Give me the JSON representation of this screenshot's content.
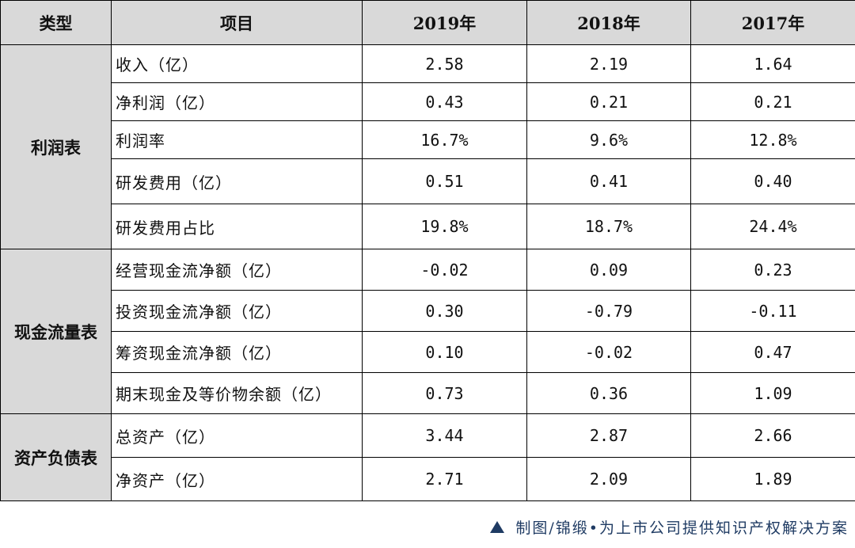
{
  "colors": {
    "header_bg": "#d9d9d9",
    "type_bg": "#d9d9d9",
    "caption": "#1f3b63"
  },
  "table": {
    "headers": [
      "类型",
      "项目",
      "2019年",
      "2018年",
      "2017年"
    ],
    "groups": [
      {
        "type": "利润表",
        "rows": [
          {
            "item": "收入（亿）",
            "values": [
              "2.58",
              "2.19",
              "1.64"
            ]
          },
          {
            "item": "净利润（亿）",
            "values": [
              "0.43",
              "0.21",
              "0.21"
            ]
          },
          {
            "item": "利润率",
            "values": [
              "16.7%",
              "9.6%",
              "12.8%"
            ]
          },
          {
            "item": "研发费用（亿）",
            "values": [
              "0.51",
              "0.41",
              "0.40"
            ]
          },
          {
            "item": "研发费用占比",
            "values": [
              "19.8%",
              "18.7%",
              "24.4%"
            ]
          }
        ]
      },
      {
        "type": "现金流量表",
        "rows": [
          {
            "item": "经营现金流净额（亿）",
            "values": [
              "-0.02",
              "0.09",
              "0.23"
            ]
          },
          {
            "item": "投资现金流净额（亿）",
            "values": [
              "0.30",
              "-0.79",
              "-0.11"
            ]
          },
          {
            "item": "筹资现金流净额（亿）",
            "values": [
              "0.10",
              "-0.02",
              "0.47"
            ]
          },
          {
            "item": "期末现金及等价物余额（亿）",
            "values": [
              "0.73",
              "0.36",
              "1.09"
            ]
          }
        ]
      },
      {
        "type": "资产负债表",
        "rows": [
          {
            "item": "总资产（亿）",
            "values": [
              "3.44",
              "2.87",
              "2.66"
            ]
          },
          {
            "item": "净资产（亿）",
            "values": [
              "2.71",
              "2.09",
              "1.89"
            ]
          }
        ]
      }
    ]
  },
  "caption": {
    "icon": "triangle-up-icon",
    "text": "制图/锦缎•为上市公司提供知识产权解决方案"
  }
}
